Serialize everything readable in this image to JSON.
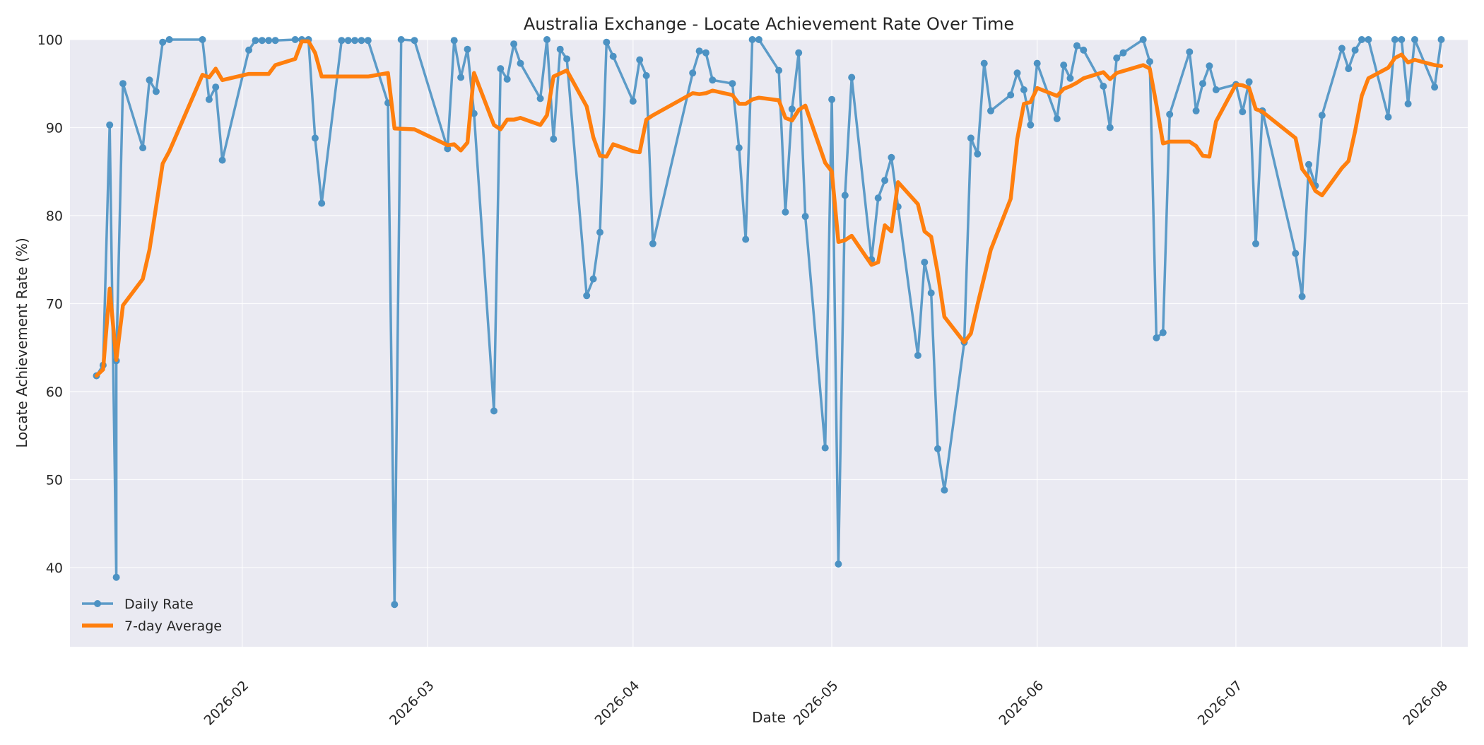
{
  "chart_data": {
    "type": "line",
    "title": "Australia Exchange - Locate Achievement Rate Over Time",
    "xlabel": "Date",
    "ylabel": "Locate Achievement Rate (%)",
    "xlim": [
      "2026-01-06",
      "2026-08-05"
    ],
    "ylim": [
      31,
      100
    ],
    "yticks": [
      40,
      50,
      60,
      70,
      80,
      90,
      100
    ],
    "xticks": [
      "2026-02",
      "2026-03",
      "2026-04",
      "2026-05",
      "2026-06",
      "2026-07",
      "2026-08"
    ],
    "grid": true,
    "legend_position": "lower left",
    "series": [
      {
        "name": "Daily Rate",
        "color": "#4c92c3",
        "marker": "circle",
        "points": [
          [
            "2026-01-10",
            61.8
          ],
          [
            "2026-01-11",
            63.0
          ],
          [
            "2026-01-12",
            90.3
          ],
          [
            "2026-01-13",
            38.9
          ],
          [
            "2026-01-13",
            63.5
          ],
          [
            "2026-01-14",
            95.0
          ],
          [
            "2026-01-17",
            87.7
          ],
          [
            "2026-01-18",
            95.4
          ],
          [
            "2026-01-19",
            94.1
          ],
          [
            "2026-01-20",
            99.7
          ],
          [
            "2026-01-21",
            100.0
          ],
          [
            "2026-01-26",
            100.0
          ],
          [
            "2026-01-27",
            93.2
          ],
          [
            "2026-01-28",
            94.6
          ],
          [
            "2026-01-29",
            86.3
          ],
          [
            "2026-02-02",
            98.8
          ],
          [
            "2026-02-03",
            99.9
          ],
          [
            "2026-02-04",
            99.9
          ],
          [
            "2026-02-05",
            99.9
          ],
          [
            "2026-02-06",
            99.9
          ],
          [
            "2026-02-09",
            100.0
          ],
          [
            "2026-02-10",
            100.0
          ],
          [
            "2026-02-11",
            100.0
          ],
          [
            "2026-02-12",
            88.8
          ],
          [
            "2026-02-13",
            81.4
          ],
          [
            "2026-02-16",
            99.9
          ],
          [
            "2026-02-17",
            99.9
          ],
          [
            "2026-02-18",
            99.9
          ],
          [
            "2026-02-19",
            99.9
          ],
          [
            "2026-02-20",
            99.9
          ],
          [
            "2026-02-23",
            92.8
          ],
          [
            "2026-02-24",
            35.8
          ],
          [
            "2026-02-25",
            100.0
          ],
          [
            "2026-02-27",
            99.9
          ],
          [
            "2026-03-04",
            87.6
          ],
          [
            "2026-03-05",
            99.9
          ],
          [
            "2026-03-06",
            95.7
          ],
          [
            "2026-03-07",
            98.9
          ],
          [
            "2026-03-08",
            91.6
          ],
          [
            "2026-03-11",
            57.8
          ],
          [
            "2026-03-12",
            96.7
          ],
          [
            "2026-03-13",
            95.5
          ],
          [
            "2026-03-14",
            99.5
          ],
          [
            "2026-03-15",
            97.3
          ],
          [
            "2026-03-18",
            93.3
          ],
          [
            "2026-03-19",
            100.0
          ],
          [
            "2026-03-20",
            88.7
          ],
          [
            "2026-03-21",
            98.9
          ],
          [
            "2026-03-22",
            97.8
          ],
          [
            "2026-03-25",
            70.9
          ],
          [
            "2026-03-26",
            72.8
          ],
          [
            "2026-03-27",
            78.1
          ],
          [
            "2026-03-28",
            99.7
          ],
          [
            "2026-03-29",
            98.1
          ],
          [
            "2026-04-01",
            93.0
          ],
          [
            "2026-04-02",
            97.7
          ],
          [
            "2026-04-03",
            95.9
          ],
          [
            "2026-04-04",
            76.8
          ],
          [
            "2026-04-10",
            96.2
          ],
          [
            "2026-04-11",
            98.7
          ],
          [
            "2026-04-12",
            98.5
          ],
          [
            "2026-04-13",
            95.4
          ],
          [
            "2026-04-16",
            95.0
          ],
          [
            "2026-04-17",
            87.7
          ],
          [
            "2026-04-18",
            77.3
          ],
          [
            "2026-04-19",
            100.0
          ],
          [
            "2026-04-20",
            100.0
          ],
          [
            "2026-04-23",
            96.5
          ],
          [
            "2026-04-24",
            80.4
          ],
          [
            "2026-04-25",
            92.1
          ],
          [
            "2026-04-26",
            98.5
          ],
          [
            "2026-04-27",
            79.9
          ],
          [
            "2026-04-30",
            53.6
          ],
          [
            "2026-05-01",
            93.2
          ],
          [
            "2026-05-02",
            40.4
          ],
          [
            "2026-05-03",
            82.3
          ],
          [
            "2026-05-04",
            95.7
          ],
          [
            "2026-05-07",
            75.0
          ],
          [
            "2026-05-08",
            82.0
          ],
          [
            "2026-05-09",
            84.0
          ],
          [
            "2026-05-10",
            86.6
          ],
          [
            "2026-05-11",
            81.0
          ],
          [
            "2026-05-14",
            64.1
          ],
          [
            "2026-05-15",
            74.7
          ],
          [
            "2026-05-16",
            71.2
          ],
          [
            "2026-05-17",
            53.5
          ],
          [
            "2026-05-18",
            48.8
          ],
          [
            "2026-05-21",
            65.6
          ],
          [
            "2026-05-22",
            88.8
          ],
          [
            "2026-05-23",
            87.0
          ],
          [
            "2026-05-24",
            97.3
          ],
          [
            "2026-05-25",
            91.9
          ],
          [
            "2026-05-28",
            93.7
          ],
          [
            "2026-05-29",
            96.2
          ],
          [
            "2026-05-30",
            94.3
          ],
          [
            "2026-05-31",
            90.3
          ],
          [
            "2026-06-01",
            97.3
          ],
          [
            "2026-06-04",
            91.0
          ],
          [
            "2026-06-05",
            97.1
          ],
          [
            "2026-06-06",
            95.6
          ],
          [
            "2026-06-07",
            99.3
          ],
          [
            "2026-06-08",
            98.8
          ],
          [
            "2026-06-11",
            94.7
          ],
          [
            "2026-06-12",
            90.0
          ],
          [
            "2026-06-13",
            97.9
          ],
          [
            "2026-06-14",
            98.5
          ],
          [
            "2026-06-17",
            100.0
          ],
          [
            "2026-06-18",
            97.5
          ],
          [
            "2026-06-19",
            66.1
          ],
          [
            "2026-06-20",
            66.7
          ],
          [
            "2026-06-21",
            91.5
          ],
          [
            "2026-06-24",
            98.6
          ],
          [
            "2026-06-25",
            91.9
          ],
          [
            "2026-06-26",
            95.0
          ],
          [
            "2026-06-27",
            97.0
          ],
          [
            "2026-06-28",
            94.3
          ],
          [
            "2026-07-01",
            94.9
          ],
          [
            "2026-07-02",
            91.8
          ],
          [
            "2026-07-03",
            95.2
          ],
          [
            "2026-07-04",
            76.8
          ],
          [
            "2026-07-05",
            91.9
          ],
          [
            "2026-07-10",
            75.7
          ],
          [
            "2026-07-11",
            70.8
          ],
          [
            "2026-07-12",
            85.8
          ],
          [
            "2026-07-13",
            83.4
          ],
          [
            "2026-07-14",
            91.4
          ],
          [
            "2026-07-17",
            99.0
          ],
          [
            "2026-07-18",
            96.7
          ],
          [
            "2026-07-19",
            98.8
          ],
          [
            "2026-07-20",
            100.0
          ],
          [
            "2026-07-21",
            100.0
          ],
          [
            "2026-07-24",
            91.2
          ],
          [
            "2026-07-25",
            100.0
          ],
          [
            "2026-07-26",
            100.0
          ],
          [
            "2026-07-27",
            92.7
          ],
          [
            "2026-07-28",
            100.0
          ],
          [
            "2026-07-31",
            94.6
          ],
          [
            "2026-08-01",
            100.0
          ]
        ]
      },
      {
        "name": "7-day Average",
        "color": "#ff7f0e",
        "marker": "none",
        "points": [
          [
            "2026-01-10",
            61.8
          ],
          [
            "2026-01-11",
            62.5
          ],
          [
            "2026-01-12",
            71.7
          ],
          [
            "2026-01-13",
            63.6
          ],
          [
            "2026-01-14",
            69.8
          ],
          [
            "2026-01-17",
            72.8
          ],
          [
            "2026-01-18",
            76.1
          ],
          [
            "2026-01-20",
            85.9
          ],
          [
            "2026-01-21",
            87.3
          ],
          [
            "2026-01-26",
            96.0
          ],
          [
            "2026-01-27",
            95.7
          ],
          [
            "2026-01-28",
            96.7
          ],
          [
            "2026-01-29",
            95.4
          ],
          [
            "2026-02-02",
            96.1
          ],
          [
            "2026-02-05",
            96.1
          ],
          [
            "2026-02-06",
            97.1
          ],
          [
            "2026-02-09",
            97.8
          ],
          [
            "2026-02-10",
            99.8
          ],
          [
            "2026-02-11",
            99.8
          ],
          [
            "2026-02-12",
            98.5
          ],
          [
            "2026-02-13",
            95.8
          ],
          [
            "2026-02-20",
            95.8
          ],
          [
            "2026-02-23",
            96.2
          ],
          [
            "2026-02-24",
            89.9
          ],
          [
            "2026-02-27",
            89.8
          ],
          [
            "2026-03-04",
            88.0
          ],
          [
            "2026-03-05",
            88.1
          ],
          [
            "2026-03-06",
            87.4
          ],
          [
            "2026-03-07",
            88.3
          ],
          [
            "2026-03-08",
            96.2
          ],
          [
            "2026-03-11",
            90.3
          ],
          [
            "2026-03-12",
            89.8
          ],
          [
            "2026-03-13",
            90.9
          ],
          [
            "2026-03-14",
            90.9
          ],
          [
            "2026-03-15",
            91.1
          ],
          [
            "2026-03-18",
            90.3
          ],
          [
            "2026-03-19",
            91.4
          ],
          [
            "2026-03-20",
            95.8
          ],
          [
            "2026-03-22",
            96.5
          ],
          [
            "2026-03-25",
            92.4
          ],
          [
            "2026-03-26",
            88.9
          ],
          [
            "2026-03-27",
            86.8
          ],
          [
            "2026-03-28",
            86.7
          ],
          [
            "2026-03-29",
            88.1
          ],
          [
            "2026-04-01",
            87.3
          ],
          [
            "2026-04-02",
            87.2
          ],
          [
            "2026-04-03",
            90.9
          ],
          [
            "2026-04-04",
            91.4
          ],
          [
            "2026-04-10",
            93.9
          ],
          [
            "2026-04-11",
            93.8
          ],
          [
            "2026-04-12",
            93.9
          ],
          [
            "2026-04-13",
            94.2
          ],
          [
            "2026-04-16",
            93.7
          ],
          [
            "2026-04-17",
            92.7
          ],
          [
            "2026-04-18",
            92.7
          ],
          [
            "2026-04-19",
            93.2
          ],
          [
            "2026-04-20",
            93.4
          ],
          [
            "2026-04-23",
            93.1
          ],
          [
            "2026-04-24",
            91.1
          ],
          [
            "2026-04-25",
            90.8
          ],
          [
            "2026-04-26",
            92.0
          ],
          [
            "2026-04-27",
            92.5
          ],
          [
            "2026-04-30",
            86.0
          ],
          [
            "2026-05-01",
            85.0
          ],
          [
            "2026-05-02",
            77.0
          ],
          [
            "2026-05-03",
            77.2
          ],
          [
            "2026-05-04",
            77.7
          ],
          [
            "2026-05-07",
            74.4
          ],
          [
            "2026-05-08",
            74.7
          ],
          [
            "2026-05-09",
            78.9
          ],
          [
            "2026-05-10",
            78.2
          ],
          [
            "2026-05-11",
            83.8
          ],
          [
            "2026-05-14",
            81.3
          ],
          [
            "2026-05-15",
            78.2
          ],
          [
            "2026-05-16",
            77.6
          ],
          [
            "2026-05-17",
            73.5
          ],
          [
            "2026-05-18",
            68.5
          ],
          [
            "2026-05-21",
            65.6
          ],
          [
            "2026-05-22",
            66.6
          ],
          [
            "2026-05-23",
            69.9
          ],
          [
            "2026-05-25",
            76.1
          ],
          [
            "2026-05-28",
            81.9
          ],
          [
            "2026-05-29",
            88.7
          ],
          [
            "2026-05-30",
            92.7
          ],
          [
            "2026-05-31",
            92.9
          ],
          [
            "2026-06-01",
            94.5
          ],
          [
            "2026-06-04",
            93.6
          ],
          [
            "2026-06-05",
            94.4
          ],
          [
            "2026-06-06",
            94.7
          ],
          [
            "2026-06-07",
            95.1
          ],
          [
            "2026-06-08",
            95.6
          ],
          [
            "2026-06-11",
            96.3
          ],
          [
            "2026-06-12",
            95.5
          ],
          [
            "2026-06-13",
            96.2
          ],
          [
            "2026-06-17",
            97.1
          ],
          [
            "2026-06-18",
            96.7
          ],
          [
            "2026-06-19",
            92.6
          ],
          [
            "2026-06-20",
            88.2
          ],
          [
            "2026-06-21",
            88.4
          ],
          [
            "2026-06-24",
            88.4
          ],
          [
            "2026-06-25",
            87.9
          ],
          [
            "2026-06-26",
            86.8
          ],
          [
            "2026-06-27",
            86.7
          ],
          [
            "2026-06-28",
            90.7
          ],
          [
            "2026-07-01",
            94.9
          ],
          [
            "2026-07-02",
            94.8
          ],
          [
            "2026-07-03",
            94.5
          ],
          [
            "2026-07-04",
            92.1
          ],
          [
            "2026-07-05",
            91.8
          ],
          [
            "2026-07-10",
            88.8
          ],
          [
            "2026-07-11",
            85.3
          ],
          [
            "2026-07-12",
            84.3
          ],
          [
            "2026-07-13",
            82.8
          ],
          [
            "2026-07-14",
            82.3
          ],
          [
            "2026-07-17",
            85.4
          ],
          [
            "2026-07-18",
            86.2
          ],
          [
            "2026-07-19",
            89.6
          ],
          [
            "2026-07-20",
            93.6
          ],
          [
            "2026-07-21",
            95.6
          ],
          [
            "2026-07-24",
            96.8
          ],
          [
            "2026-07-25",
            97.9
          ],
          [
            "2026-07-26",
            98.3
          ],
          [
            "2026-07-27",
            97.4
          ],
          [
            "2026-07-28",
            97.7
          ],
          [
            "2026-07-31",
            97.1
          ],
          [
            "2026-08-01",
            97.0
          ]
        ]
      }
    ]
  }
}
